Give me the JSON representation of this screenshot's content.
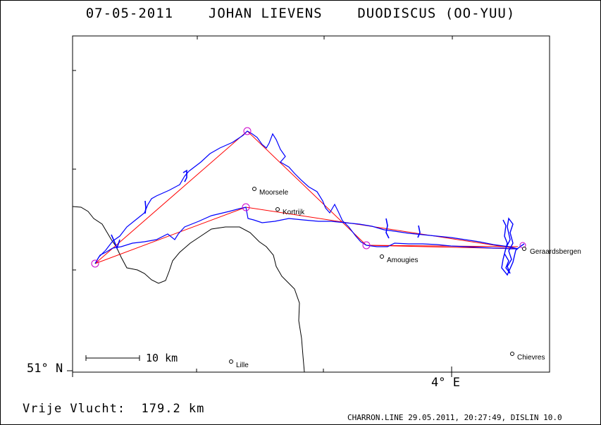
{
  "header": {
    "date": "07-05-2011",
    "pilot": "JOHAN LIEVENS",
    "glider": "DUODISCUS (OO-YUU)"
  },
  "axes": {
    "lat_label": "51° N",
    "lon_label": "4° E"
  },
  "scale": {
    "label": "10 km"
  },
  "places": [
    {
      "name": "Moorsele"
    },
    {
      "name": "Kortrijk"
    },
    {
      "name": "Amougies"
    },
    {
      "name": "Geraardsbergen"
    },
    {
      "name": "Lille"
    },
    {
      "name": "Chievres"
    }
  ],
  "footer": {
    "distance": "Vrije Vlucht:  179.2 km",
    "credit": "CHARRON.LINE 29.05.2011, 20:27:49, DISLIN 10.0"
  },
  "colors": {
    "track": "#0000ff",
    "task": "#ff0000",
    "turnpoint": "#cc00cc",
    "border": "#000000"
  }
}
